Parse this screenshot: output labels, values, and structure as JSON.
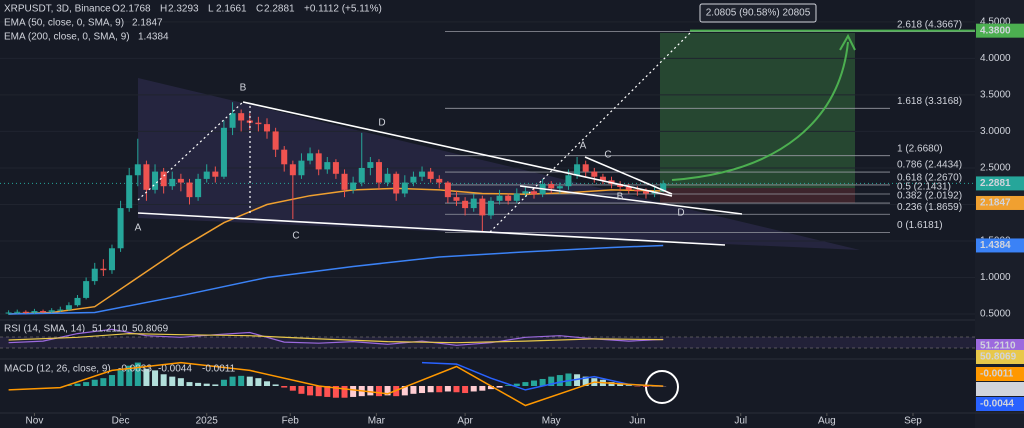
{
  "chart_data": {
    "type": "candlestick",
    "symbol": "XRPUSDT, 3D, Binance",
    "ohlc_labels": [
      "O",
      "H",
      "L",
      "C"
    ],
    "change": "+0.1112 (+5.11%)",
    "up_color": "#26a69a",
    "down_color": "#ef5350",
    "open": [
      0.51,
      0.52,
      0.53,
      0.52,
      0.54,
      0.53,
      0.55,
      0.56,
      0.62,
      0.72,
      0.95,
      1.12,
      1.1,
      1.4,
      1.95,
      2.4,
      2.55,
      2.2,
      2.45,
      2.25,
      2.35,
      2.3,
      2.1,
      2.35,
      2.45,
      2.38,
      3.05,
      3.25,
      3.15,
      3.12,
      3.1,
      3.0,
      2.75,
      2.55,
      2.4,
      2.6,
      2.7,
      2.48,
      2.58,
      2.42,
      2.2,
      2.3,
      2.5,
      2.58,
      2.3,
      2.42,
      2.15,
      2.3,
      2.38,
      2.45,
      2.35,
      2.3,
      2.1,
      2.05,
      1.95,
      2.08,
      1.85,
      2.05,
      2.12,
      2.05,
      2.15,
      2.18,
      2.14,
      2.28,
      2.22,
      2.25,
      2.4,
      2.55,
      2.45,
      2.38,
      2.33,
      2.28,
      2.24,
      2.2,
      2.18,
      2.15,
      2.1768
    ],
    "high": [
      0.55,
      0.56,
      0.55,
      0.57,
      0.56,
      0.58,
      0.6,
      0.66,
      0.76,
      1.0,
      1.2,
      1.25,
      1.45,
      2.05,
      2.5,
      2.9,
      2.6,
      2.55,
      2.5,
      2.45,
      2.42,
      2.35,
      2.42,
      2.55,
      2.52,
      3.15,
      3.4,
      3.3,
      3.25,
      3.2,
      3.18,
      3.05,
      2.8,
      2.6,
      2.7,
      2.78,
      2.75,
      2.65,
      2.62,
      2.48,
      2.38,
      2.98,
      2.65,
      2.62,
      2.5,
      2.45,
      2.4,
      2.45,
      2.52,
      2.5,
      2.4,
      2.32,
      2.18,
      2.1,
      2.15,
      2.12,
      2.1,
      2.2,
      2.15,
      2.22,
      2.25,
      2.22,
      2.35,
      2.32,
      2.3,
      2.48,
      2.65,
      2.6,
      2.5,
      2.42,
      2.38,
      2.32,
      2.28,
      2.25,
      2.22,
      2.25,
      2.3293
    ],
    "low": [
      0.49,
      0.5,
      0.5,
      0.5,
      0.51,
      0.51,
      0.53,
      0.54,
      0.6,
      0.7,
      0.9,
      1.02,
      1.05,
      1.35,
      1.9,
      2.25,
      2.05,
      2.15,
      2.15,
      2.2,
      2.18,
      2.0,
      2.05,
      2.3,
      2.3,
      2.35,
      2.95,
      3.0,
      3.02,
      3.0,
      2.9,
      2.65,
      2.45,
      1.8,
      2.35,
      2.55,
      2.4,
      2.42,
      2.35,
      2.1,
      2.15,
      2.25,
      2.4,
      2.2,
      2.25,
      2.05,
      2.1,
      2.25,
      2.32,
      2.3,
      2.22,
      2.02,
      1.98,
      1.85,
      1.9,
      1.62,
      1.8,
      2.0,
      2.0,
      2.02,
      2.1,
      2.08,
      2.1,
      2.15,
      2.15,
      2.2,
      2.35,
      2.38,
      2.3,
      2.28,
      2.22,
      2.18,
      2.15,
      2.12,
      2.08,
      2.1,
      2.1661
    ],
    "close": [
      0.52,
      0.53,
      0.52,
      0.54,
      0.53,
      0.55,
      0.56,
      0.62,
      0.72,
      0.95,
      1.12,
      1.1,
      1.4,
      1.95,
      2.4,
      2.55,
      2.2,
      2.45,
      2.25,
      2.35,
      2.3,
      2.1,
      2.35,
      2.45,
      2.38,
      3.05,
      3.25,
      3.15,
      3.12,
      3.1,
      3.0,
      2.75,
      2.55,
      2.4,
      2.6,
      2.7,
      2.48,
      2.58,
      2.42,
      2.2,
      2.3,
      2.5,
      2.58,
      2.3,
      2.42,
      2.15,
      2.3,
      2.38,
      2.45,
      2.35,
      2.3,
      2.1,
      2.05,
      1.95,
      2.08,
      1.85,
      2.05,
      2.12,
      2.05,
      2.15,
      2.18,
      2.14,
      2.28,
      2.22,
      2.25,
      2.4,
      2.55,
      2.45,
      2.38,
      2.33,
      2.28,
      2.24,
      2.2,
      2.18,
      2.15,
      2.1768,
      2.2881
    ],
    "xlim": [
      -1,
      112.2
    ],
    "xticks": [
      {
        "value": 3,
        "label": "Nov"
      },
      {
        "value": 13,
        "label": "Dec"
      },
      {
        "value": 23,
        "label": "2025"
      },
      {
        "value": 32.7,
        "label": "Feb"
      },
      {
        "value": 42.7,
        "label": "Mar"
      },
      {
        "value": 53,
        "label": "Apr"
      },
      {
        "value": 63,
        "label": "May"
      },
      {
        "value": 73,
        "label": "Jun"
      },
      {
        "value": 85,
        "label": "Jul"
      },
      {
        "value": 95,
        "label": "Aug"
      },
      {
        "value": 105,
        "label": "Sep"
      }
    ],
    "ylim": [
      0.445,
      4.8
    ],
    "yticks": [
      {
        "value": 0.5,
        "label": "0.5000"
      },
      {
        "value": 1,
        "label": "1.0000"
      },
      {
        "value": 1.5,
        "label": "1.5000"
      },
      {
        "value": 2,
        "label": "2.0000"
      },
      {
        "value": 2.5,
        "label": "2.5000"
      },
      {
        "value": 3,
        "label": "3.0000"
      },
      {
        "value": 3.5,
        "label": "3.5000"
      },
      {
        "value": 4,
        "label": "4.0000"
      },
      {
        "value": 4.5,
        "label": "4.5000"
      }
    ],
    "series": [
      {
        "name": "EMA (50, close, 0, SMA, 9)",
        "color": "#f0a030",
        "x": [
          0,
          5,
          10,
          15,
          20,
          25,
          30,
          35,
          40,
          45,
          50,
          55,
          60,
          65,
          70,
          76
        ],
        "values": [
          0.5,
          0.52,
          0.6,
          1.0,
          1.4,
          1.75,
          2.0,
          2.12,
          2.2,
          2.22,
          2.2,
          2.15,
          2.14,
          2.16,
          2.2,
          2.1847
        ]
      },
      {
        "name": "EMA (200, close, 0, SMA, 9)",
        "color": "#3b82f6",
        "x": [
          0,
          10,
          20,
          30,
          40,
          50,
          60,
          70,
          76
        ],
        "values": [
          0.5,
          0.52,
          0.75,
          1.0,
          1.15,
          1.28,
          1.35,
          1.41,
          1.4384
        ]
      }
    ],
    "last_price": 2.2881,
    "target": {
      "value": 4.38,
      "label": "4.3800"
    },
    "measure": "2.0805 (90.58%) 20805",
    "fib": [
      {
        "label": "2.618 (4.3667)",
        "value": 4.3667
      },
      {
        "label": "1.618 (3.3168)",
        "value": 3.3168
      },
      {
        "label": "1 (2.6680)",
        "value": 2.668
      },
      {
        "label": "0.786 (2.4434)",
        "value": 2.4434
      },
      {
        "label": "0.618 (2.2670)",
        "value": 2.267
      },
      {
        "label": "0.5 (2.1431)",
        "value": 2.1431
      },
      {
        "label": "0.382 (2.0192)",
        "value": 2.0192
      },
      {
        "label": "0.236 (1.8659)",
        "value": 1.8659
      },
      {
        "label": "0 (1.6181)",
        "value": 1.6181
      }
    ],
    "annotations": [
      "B",
      "A",
      "C",
      "D",
      "A",
      "C",
      "B",
      "D"
    ],
    "rsi": {
      "name": "RSI (14, SMA, 14)",
      "ylim": [
        20,
        80
      ],
      "series": [
        {
          "color": "#9c6ade",
          "x": [
            0,
            4,
            8,
            12,
            16,
            20,
            24,
            28,
            32,
            36,
            40,
            44,
            48,
            52,
            56,
            60,
            64,
            68,
            72,
            76
          ],
          "values": [
            45,
            48,
            62,
            70,
            58,
            55,
            60,
            64,
            46,
            44,
            47,
            42,
            48,
            40,
            45,
            55,
            58,
            52,
            48,
            51.211
          ],
          "last_label": "51.2110"
        },
        {
          "color": "#e8c84a",
          "x": [
            0,
            8,
            14,
            20,
            28,
            36,
            44,
            52,
            60,
            68,
            76
          ],
          "values": [
            50,
            55,
            62,
            60,
            58,
            52,
            47,
            45,
            48,
            52,
            50.8069
          ],
          "last_label": "50.8069"
        }
      ]
    },
    "macd": {
      "name": "MACD (12, 26, close, 9)",
      "ylim": [
        -0.32,
        0.32
      ],
      "histogram": [
        0,
        0,
        0,
        0,
        0,
        0,
        0,
        0.01,
        0.03,
        0.05,
        0.08,
        0.1,
        0.14,
        0.2,
        0.26,
        0.3,
        0.22,
        0.2,
        0.15,
        0.12,
        0.1,
        0.05,
        0.04,
        0.03,
        0.02,
        0.08,
        0.12,
        0.13,
        0.12,
        0.1,
        0.06,
        0.02,
        -0.02,
        -0.06,
        -0.1,
        -0.12,
        -0.13,
        -0.14,
        -0.15,
        -0.15,
        -0.14,
        -0.13,
        -0.12,
        -0.13,
        -0.12,
        -0.13,
        -0.12,
        -0.1,
        -0.09,
        -0.08,
        -0.08,
        -0.07,
        -0.08,
        -0.09,
        -0.07,
        -0.06,
        -0.04,
        -0.02,
        0.01,
        0.03,
        0.05,
        0.07,
        0.09,
        0.12,
        0.14,
        0.16,
        0.15,
        0.12,
        0.1,
        0.08,
        0.05,
        0.03,
        0.01,
        -0.005,
        -0.01,
        -0.008,
        -0.0033
      ],
      "series": [
        {
          "color": "#2962ff",
          "x": [
            48,
            52,
            56,
            60,
            64,
            68,
            72,
            76
          ],
          "values": [
            0.3,
            0.28,
            0.1,
            -0.05,
            0.05,
            0.12,
            0.02,
            -0.0044
          ]
        },
        {
          "color": "#ff9800",
          "x": [
            0,
            6,
            12,
            20,
            28,
            36,
            44,
            52,
            60,
            68,
            72,
            76
          ],
          "values": [
            -0.05,
            -0.02,
            0.2,
            0.3,
            0.2,
            0.0,
            -0.1,
            0.25,
            -0.25,
            0.05,
            0.02,
            -0.0011
          ]
        }
      ]
    }
  }
}
